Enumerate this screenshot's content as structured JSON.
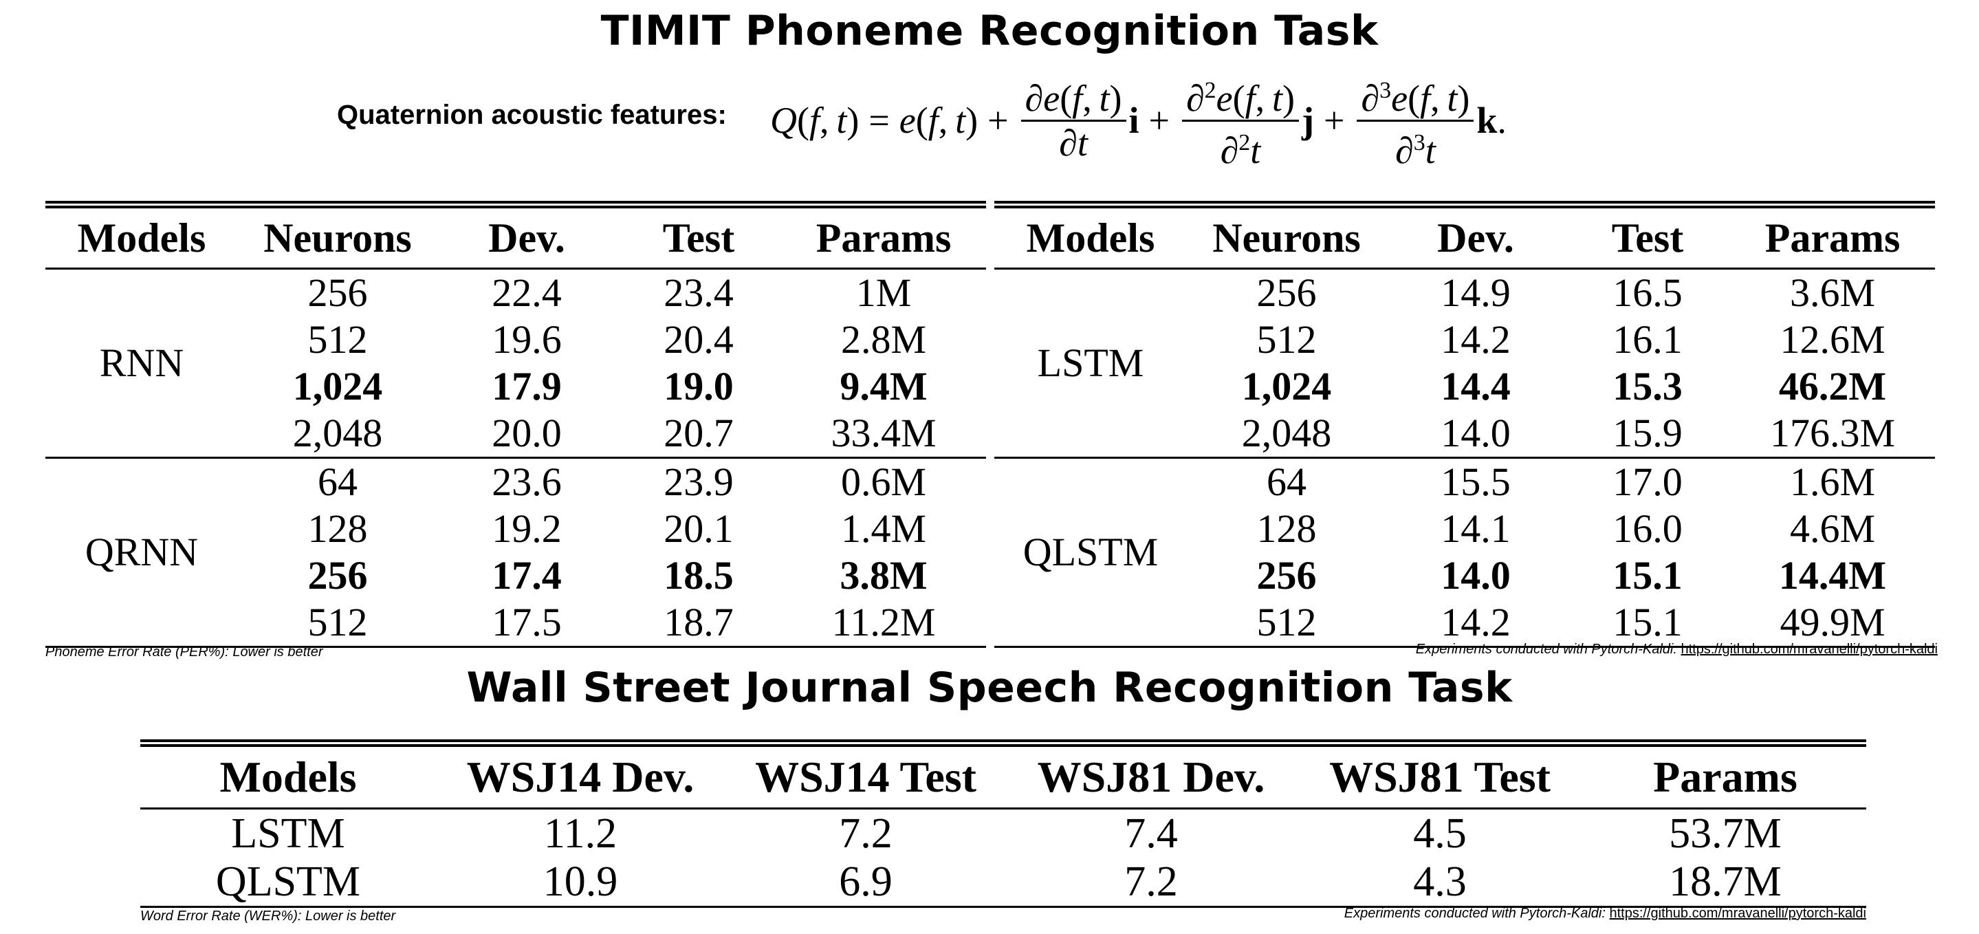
{
  "timit": {
    "title": "TIMIT Phoneme Recognition Task",
    "features_label": "Quaternion acoustic features:",
    "headers": [
      "Models",
      "Neurons",
      "Dev.",
      "Test",
      "Params"
    ],
    "left": {
      "groups": [
        {
          "model": "RNN",
          "rows": [
            {
              "neurons": "256",
              "dev": "22.4",
              "test": "23.4",
              "params": "1M",
              "bold": false
            },
            {
              "neurons": "512",
              "dev": "19.6",
              "test": "20.4",
              "params": "2.8M",
              "bold": false
            },
            {
              "neurons": "1,024",
              "dev": "17.9",
              "test": "19.0",
              "params": "9.4M",
              "bold": true
            },
            {
              "neurons": "2,048",
              "dev": "20.0",
              "test": "20.7",
              "params": "33.4M",
              "bold": false
            }
          ]
        },
        {
          "model": "QRNN",
          "rows": [
            {
              "neurons": "64",
              "dev": "23.6",
              "test": "23.9",
              "params": "0.6M",
              "bold": false
            },
            {
              "neurons": "128",
              "dev": "19.2",
              "test": "20.1",
              "params": "1.4M",
              "bold": false
            },
            {
              "neurons": "256",
              "dev": "17.4",
              "test": "18.5",
              "params": "3.8M",
              "bold": true
            },
            {
              "neurons": "512",
              "dev": "17.5",
              "test": "18.7",
              "params": "11.2M",
              "bold": false
            }
          ]
        }
      ]
    },
    "right": {
      "groups": [
        {
          "model": "LSTM",
          "rows": [
            {
              "neurons": "256",
              "dev": "14.9",
              "test": "16.5",
              "params": "3.6M",
              "bold": false
            },
            {
              "neurons": "512",
              "dev": "14.2",
              "test": "16.1",
              "params": "12.6M",
              "bold": false
            },
            {
              "neurons": "1,024",
              "dev": "14.4",
              "test": "15.3",
              "params": "46.2M",
              "bold": true
            },
            {
              "neurons": "2,048",
              "dev": "14.0",
              "test": "15.9",
              "params": "176.3M",
              "bold": false
            }
          ]
        },
        {
          "model": "QLSTM",
          "rows": [
            {
              "neurons": "64",
              "dev": "15.5",
              "test": "17.0",
              "params": "1.6M",
              "bold": false
            },
            {
              "neurons": "128",
              "dev": "14.1",
              "test": "16.0",
              "params": "4.6M",
              "bold": false
            },
            {
              "neurons": "256",
              "dev": "14.0",
              "test": "15.1",
              "params": "14.4M",
              "bold": true
            },
            {
              "neurons": "512",
              "dev": "14.2",
              "test": "15.1",
              "params": "49.9M",
              "bold": false
            }
          ]
        }
      ]
    },
    "note_left": "Phoneme Error Rate (PER%): Lower is better",
    "note_right_prefix": "Experiments conducted with Pytorch-Kaldi:",
    "note_right_link": "https://github.com/mravanelli/pytorch-kaldi"
  },
  "wsj": {
    "title": "Wall Street Journal Speech Recognition Task",
    "headers": [
      "Models",
      "WSJ14 Dev.",
      "WSJ14 Test",
      "WSJ81 Dev.",
      "WSJ81 Test",
      "Params"
    ],
    "rows": [
      [
        "LSTM",
        "11.2",
        "7.2",
        "7.4",
        "4.5",
        "53.7M"
      ],
      [
        "QLSTM",
        "10.9",
        "6.9",
        "7.2",
        "4.3",
        "18.7M"
      ]
    ],
    "note_left": "Word Error Rate (WER%): Lower is better",
    "note_right_prefix": "Experiments conducted with Pytorch-Kaldi:",
    "note_right_link": "https://github.com/mravanelli/pytorch-kaldi"
  }
}
